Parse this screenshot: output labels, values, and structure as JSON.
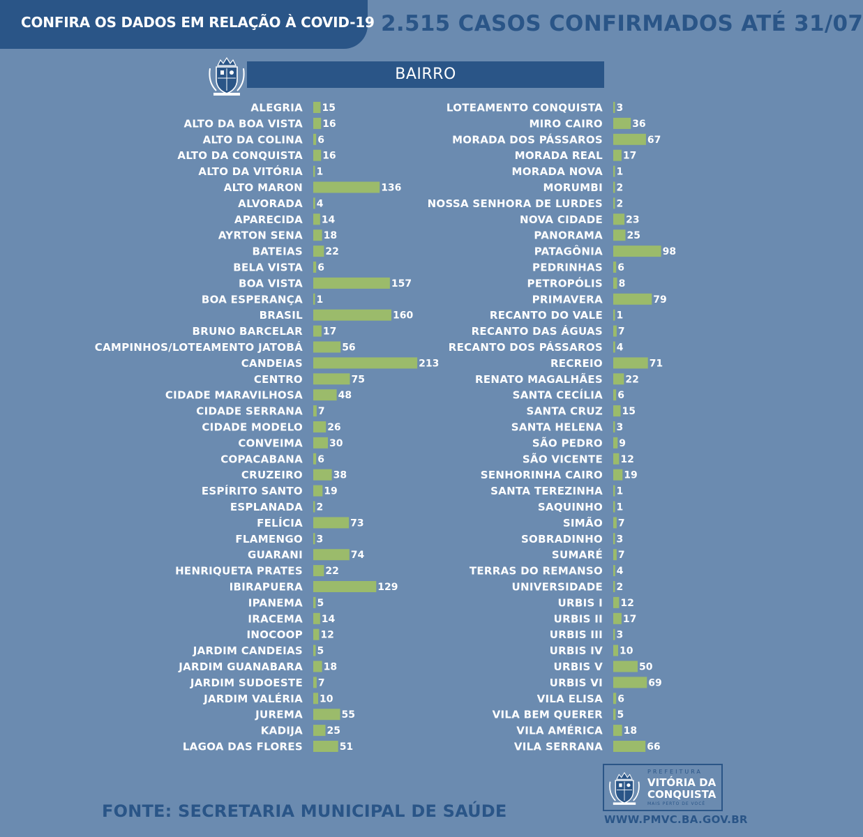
{
  "header": {
    "banner": "CONFIRA OS DADOS EM RELAÇÃO À COVID-19",
    "headline": "2.515 CASOS CONFIRMADOS ATÉ 31/07"
  },
  "section_title": "BAIRRO",
  "chart_data": {
    "type": "bar",
    "orientation": "horizontal",
    "title": "BAIRRO",
    "columns": [
      {
        "categories": [
          "ALEGRIA",
          "ALTO DA BOA VISTA",
          "ALTO DA COLINA",
          "ALTO DA CONQUISTA",
          "ALTO DA VITÓRIA",
          "ALTO MARON",
          "ALVORADA",
          "APARECIDA",
          "AYRTON SENA",
          "BATEIAS",
          "BELA VISTA",
          "BOA VISTA",
          "BOA ESPERANÇA",
          "BRASIL",
          "BRUNO BARCELAR",
          "CAMPINHOS/LOTEAMENTO JATOBÁ",
          "CANDEIAS",
          "CENTRO",
          "CIDADE MARAVILHOSA",
          "CIDADE SERRANA",
          "CIDADE MODELO",
          "CONVEIMA",
          "COPACABANA",
          "CRUZEIRO",
          "ESPÍRITO SANTO",
          "ESPLANADA",
          "FELÍCIA",
          "FLAMENGO",
          "GUARANI",
          "HENRIQUETA PRATES",
          "IBIRAPUERA",
          "IPANEMA",
          "IRACEMA",
          "INOCOOP",
          "JARDIM CANDEIAS",
          "JARDIM GUANABARA",
          "JARDIM SUDOESTE",
          "JARDIM VALÉRIA",
          "JUREMA",
          "KADIJA",
          "LAGOA DAS FLORES"
        ],
        "values": [
          15,
          16,
          6,
          16,
          1,
          136,
          4,
          14,
          18,
          22,
          6,
          157,
          1,
          160,
          17,
          56,
          213,
          75,
          48,
          7,
          26,
          30,
          6,
          38,
          19,
          2,
          73,
          3,
          74,
          22,
          129,
          5,
          14,
          12,
          5,
          18,
          7,
          10,
          55,
          25,
          51
        ]
      },
      {
        "categories": [
          "LOTEAMENTO CONQUISTA",
          "MIRO CAIRO",
          "MORADA DOS PÁSSAROS",
          "MORADA REAL",
          "MORADA NOVA",
          "MORUMBI",
          "NOSSA SENHORA DE LURDES",
          "NOVA CIDADE",
          "PANORAMA",
          "PATAGÔNIA",
          "PEDRINHAS",
          "PETROPÓLIS",
          "PRIMAVERA",
          "RECANTO DO VALE",
          "RECANTO DAS ÁGUAS",
          "RECANTO DOS PÁSSAROS",
          "RECREIO",
          "RENATO MAGALHÃES",
          "SANTA CECÍLIA",
          "SANTA CRUZ",
          "SANTA HELENA",
          "SÃO PEDRO",
          "SÃO VICENTE",
          "SENHORINHA CAIRO",
          "SANTA TEREZINHA",
          "SAQUINHO",
          "SIMÃO",
          "SOBRADINHO",
          "SUMARÉ",
          "TERRAS DO REMANSO",
          "UNIVERSIDADE",
          "URBIS I",
          "URBIS II",
          "URBIS III",
          "URBIS IV",
          "URBIS V",
          "URBIS VI",
          "VILA ELISA",
          "VILA BEM QUERER",
          "VILA AMÉRICA",
          "VILA SERRANA"
        ],
        "values": [
          3,
          36,
          67,
          17,
          1,
          2,
          2,
          23,
          25,
          98,
          6,
          8,
          79,
          1,
          7,
          4,
          71,
          22,
          6,
          15,
          3,
          9,
          12,
          19,
          1,
          1,
          7,
          3,
          7,
          4,
          2,
          12,
          17,
          3,
          10,
          50,
          69,
          6,
          5,
          18,
          66
        ]
      }
    ],
    "bar_color": "#9bbb6b",
    "grid": false,
    "legend": "none"
  },
  "footer": {
    "source": "FONTE: SECRETARIA MUNICIPAL DE SAÚDE",
    "logo_top": "PREFEITURA",
    "logo_name_line1": "VITÓRIA DA",
    "logo_name_line2": "CONQUISTA",
    "logo_tagline": "MAIS PERTO DE VOCÊ",
    "url": "WWW.PMVC.BA.GOV.BR"
  },
  "colors": {
    "background": "#6b8bb0",
    "navy": "#2a5587",
    "bar": "#9bbb6b",
    "text": "#ffffff"
  },
  "icons": [
    "city-crest-icon"
  ]
}
